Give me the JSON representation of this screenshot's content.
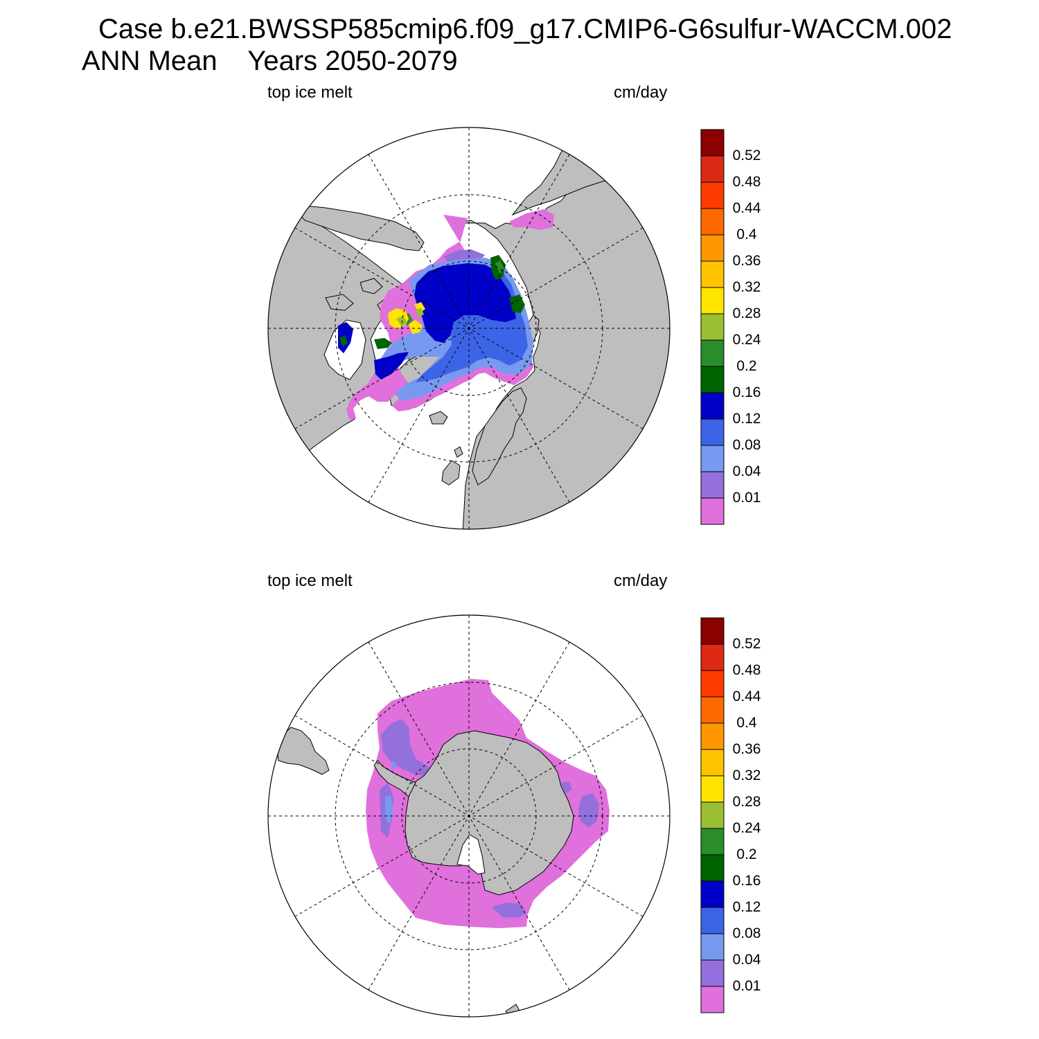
{
  "header": {
    "case_line": "Case b.e21.BWSSP585cmip6.f09_g17.CMIP6-G6sulfur-WACCM.002",
    "period_line": "ANN Mean    Years 2050-2079"
  },
  "panels": [
    {
      "hemisphere": "north",
      "left_label": "top ice melt",
      "right_label": "cm/day"
    },
    {
      "hemisphere": "south",
      "left_label": "top ice melt",
      "right_label": "cm/day"
    }
  ],
  "colorbar": {
    "tick_labels": [
      "0.52",
      "0.48",
      "0.44",
      "0.4",
      "0.36",
      "0.32",
      "0.28",
      "0.24",
      "0.2",
      "0.16",
      "0.12",
      "0.08",
      "0.04",
      "0.01"
    ],
    "colors": [
      "#8b0000",
      "#dc2a14",
      "#ff3c00",
      "#ff6a00",
      "#ff9700",
      "#ffc300",
      "#ffe400",
      "#9bbf32",
      "#2a8c2a",
      "#006400",
      "#0000c8",
      "#3c64e6",
      "#7899f0",
      "#9370db",
      "#e070dc"
    ]
  },
  "palette": {
    "land": "#bebebe",
    "ocean": "#ffffff",
    "ice_low": "#e070dc",
    "ice_0_01": "#9370db",
    "ice_0_04": "#7899f0",
    "ice_0_08": "#3c64e6",
    "ice_0_12": "#0000c8",
    "ice_0_16": "#006400",
    "ice_0_24": "#9bbf32",
    "ice_0_28": "#ffe400"
  }
}
